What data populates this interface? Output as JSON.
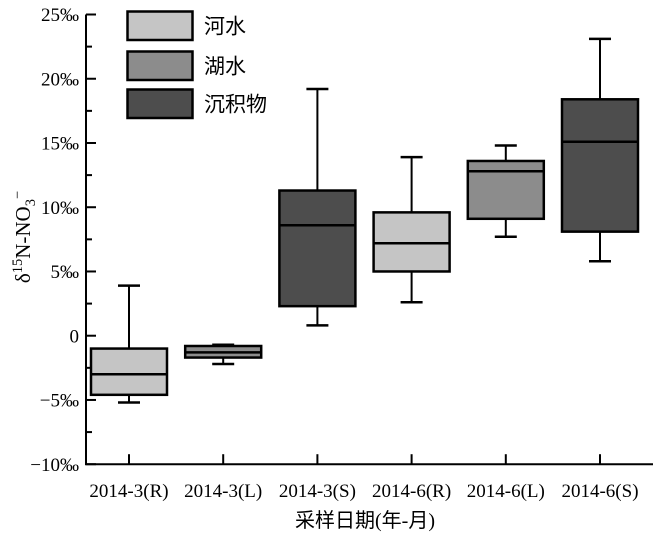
{
  "figure": {
    "background": "#ffffff",
    "axis_color": "#000000"
  },
  "chart_data": {
    "type": "box",
    "title": "",
    "xlabel": "采样日期(年-月)",
    "ylabel": "δ15N-NO3−",
    "ylabel_parts": [
      {
        "text": "δ",
        "script": "base"
      },
      {
        "text": "15",
        "script": "super"
      },
      {
        "text": "N-NO",
        "script": "base"
      },
      {
        "text": "3",
        "script": "sub"
      },
      {
        "text": "−",
        "script": "super"
      }
    ],
    "ylim": [
      -10,
      25
    ],
    "y_major_step": 5,
    "y_minor_step": 2.5,
    "y_ticks": [
      {
        "value": 25,
        "label": "25‰"
      },
      {
        "value": 20,
        "label": "20‰"
      },
      {
        "value": 15,
        "label": "15‰"
      },
      {
        "value": 10,
        "label": "10‰"
      },
      {
        "value": 5,
        "label": "5‰"
      },
      {
        "value": 0,
        "label": "0"
      },
      {
        "value": -5,
        "label": "−5‰"
      },
      {
        "value": -10,
        "label": "−10‰"
      }
    ],
    "grid": false,
    "legend": {
      "position": "top-left-inside",
      "items": [
        {
          "label": "河水",
          "color": "#c5c5c5"
        },
        {
          "label": "湖水",
          "color": "#8c8c8c"
        },
        {
          "label": "沉积物",
          "color": "#4d4d4d"
        }
      ]
    },
    "categories": [
      "2014-3(R)",
      "2014-3(L)",
      "2014-3(S)",
      "2014-6(R)",
      "2014-6(L)",
      "2014-6(S)"
    ],
    "boxes": [
      {
        "category": "2014-3(R)",
        "group": "河水",
        "color": "#c5c5c5",
        "whisker_low": -5.2,
        "q1": -4.6,
        "median": -3.0,
        "q3": -1.0,
        "whisker_high": 3.9
      },
      {
        "category": "2014-3(L)",
        "group": "湖水",
        "color": "#8c8c8c",
        "whisker_low": -2.2,
        "q1": -1.7,
        "median": -1.3,
        "q3": -0.8,
        "whisker_high": -0.7
      },
      {
        "category": "2014-3(S)",
        "group": "沉积物",
        "color": "#4d4d4d",
        "whisker_low": 0.8,
        "q1": 2.3,
        "median": 8.6,
        "q3": 11.3,
        "whisker_high": 19.2
      },
      {
        "category": "2014-6(R)",
        "group": "河水",
        "color": "#c5c5c5",
        "whisker_low": 2.6,
        "q1": 5.0,
        "median": 7.2,
        "q3": 9.6,
        "whisker_high": 13.9
      },
      {
        "category": "2014-6(L)",
        "group": "湖水",
        "color": "#8c8c8c",
        "whisker_low": 7.7,
        "q1": 9.1,
        "median": 12.8,
        "q3": 13.6,
        "whisker_high": 14.8
      },
      {
        "category": "2014-6(S)",
        "group": "沉积物",
        "color": "#4d4d4d",
        "whisker_low": 5.8,
        "q1": 8.1,
        "median": 15.1,
        "q3": 18.4,
        "whisker_high": 23.1
      }
    ]
  }
}
